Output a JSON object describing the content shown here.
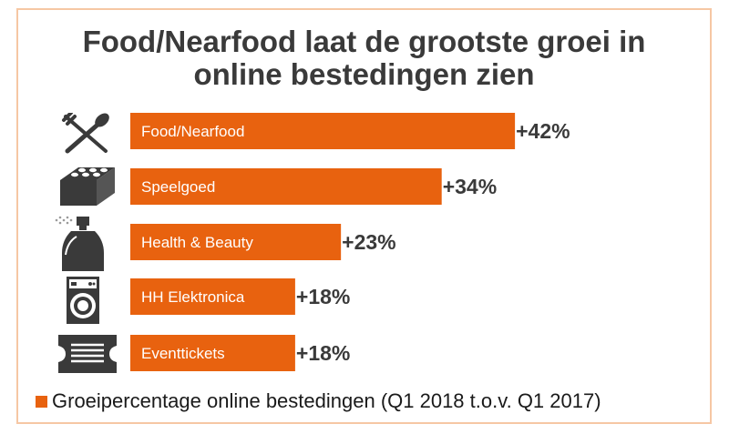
{
  "chart_data": {
    "type": "bar",
    "orientation": "horizontal",
    "title": "Food/Nearfood laat de grootste groei in online bestedingen zien",
    "title_lines": [
      "Food/Nearfood laat de grootste groei in",
      "online bestedingen zien"
    ],
    "categories": [
      "Food/Nearfood",
      "Speelgoed",
      "Health & Beauty",
      "HH Elektronica",
      "Eventtickets"
    ],
    "series": [
      {
        "name": "Groeipercentage online bestedingen (Q1 2018 t.o.v. Q1 2017)",
        "values": [
          42,
          34,
          23,
          18,
          18
        ]
      }
    ],
    "value_labels": [
      "+42%",
      "+34%",
      "+23%",
      "+18%",
      "+18%"
    ],
    "unit": "%",
    "xlim": [
      0,
      50
    ],
    "legend_position": "bottom",
    "grid": false,
    "bar_color": "#e8620f",
    "category_icons": [
      "cutlery-icon",
      "toy-brick-icon",
      "perfume-bottle-icon",
      "washing-machine-icon",
      "ticket-icon"
    ]
  },
  "colors": {
    "accent": "#e8620f",
    "title_text": "#3a3a3a",
    "frame_border": "#f6c7a4",
    "icon_color": "#3a3a3a"
  }
}
